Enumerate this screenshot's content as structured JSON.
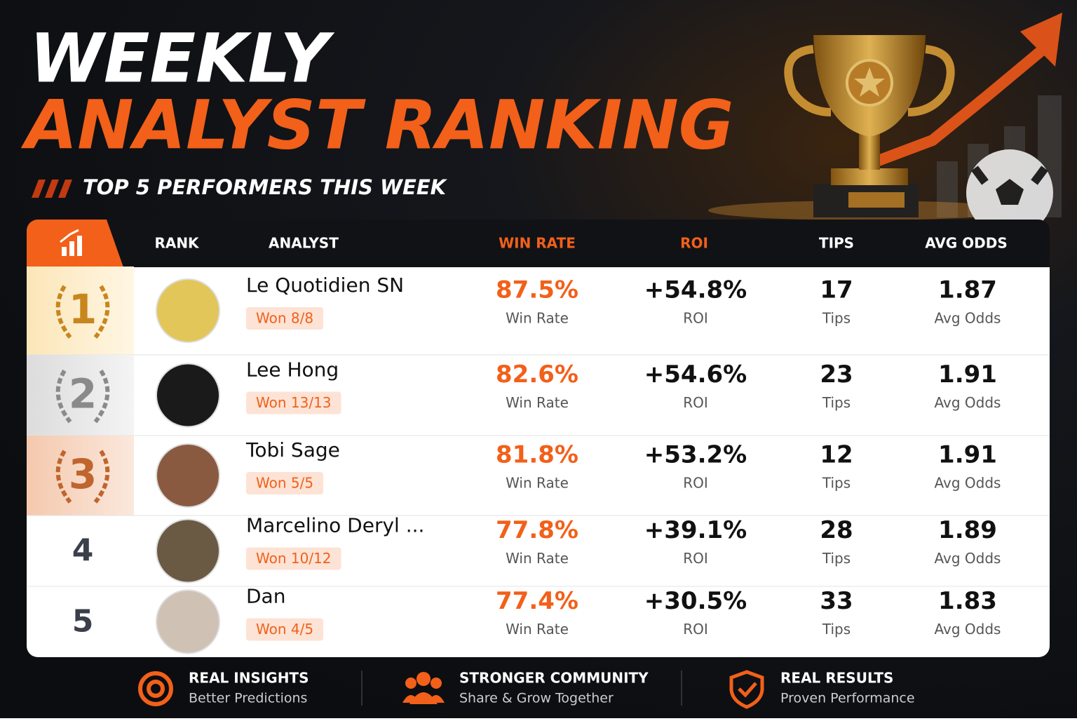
{
  "header": {
    "title_line1": "WEEKLY",
    "title_line2": "ANALYST RANKING",
    "subtitle": "TOP 5 PERFORMERS THIS WEEK"
  },
  "table": {
    "columns": [
      "RANK",
      "ANALYST",
      "WIN RATE",
      "ROI",
      "TIPS",
      "AVG ODDS"
    ],
    "sublabels": {
      "win_rate": "Win Rate",
      "roi": "ROI",
      "tips": "Tips",
      "avg_odds": "Avg Odds"
    },
    "rows": [
      {
        "rank": "1",
        "analyst": "Le Quotidien SN",
        "record": "Won 8/8",
        "win_rate": "87.5%",
        "roi": "+54.8%",
        "tips": "17",
        "avg_odds": "1.87"
      },
      {
        "rank": "2",
        "analyst": "Lee Hong",
        "record": "Won 13/13",
        "win_rate": "82.6%",
        "roi": "+54.6%",
        "tips": "23",
        "avg_odds": "1.91"
      },
      {
        "rank": "3",
        "analyst": "Tobi Sage",
        "record": "Won 5/5",
        "win_rate": "81.8%",
        "roi": "+53.2%",
        "tips": "12",
        "avg_odds": "1.91"
      },
      {
        "rank": "4",
        "analyst": "Marcelino Deryl ...",
        "record": "Won 10/12",
        "win_rate": "77.8%",
        "roi": "+39.1%",
        "tips": "28",
        "avg_odds": "1.89"
      },
      {
        "rank": "5",
        "analyst": "Dan",
        "record": "Won 4/5",
        "win_rate": "77.4%",
        "roi": "+30.5%",
        "tips": "33",
        "avg_odds": "1.83"
      }
    ]
  },
  "footer": {
    "features": [
      {
        "title": "REAL INSIGHTS",
        "subtitle": "Better Predictions"
      },
      {
        "title": "STRONGER COMMUNITY",
        "subtitle": "Share & Grow Together"
      },
      {
        "title": "REAL RESULTS",
        "subtitle": "Proven Performance"
      }
    ]
  }
}
